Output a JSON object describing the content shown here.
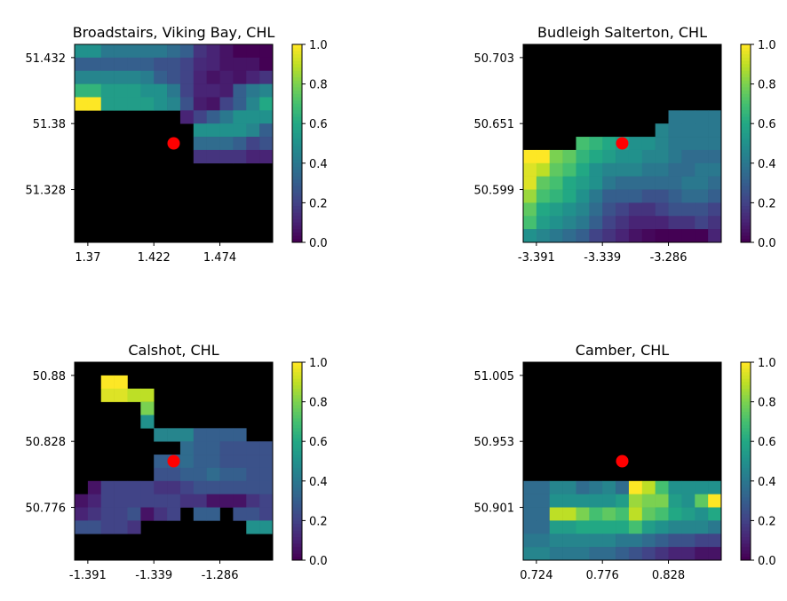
{
  "colors": {
    "land_mask": "#000000",
    "site_marker": "#ff0000",
    "colormap": "viridis"
  },
  "chart_data": [
    {
      "type": "heatmap",
      "title": "Broadstairs, Viking Bay, CHL",
      "xticks": [
        "1.37",
        "1.422",
        "1.474"
      ],
      "yticks": [
        "51.432",
        "51.38",
        "51.328"
      ],
      "colorbar_ticks": [
        "0.0",
        "0.2",
        "0.4",
        "0.6",
        "0.8",
        "1.0"
      ],
      "clim": [
        0,
        1
      ],
      "grid": [
        [
          0.5,
          0.5,
          0.4,
          0.4,
          0.4,
          0.4,
          0.4,
          0.35,
          0.3,
          0.15,
          0.1,
          0.05,
          0.0,
          0.0,
          0.0
        ],
        [
          0.3,
          0.3,
          0.3,
          0.3,
          0.3,
          0.3,
          0.25,
          0.25,
          0.2,
          0.12,
          0.1,
          0.05,
          0.05,
          0.05,
          0.0
        ],
        [
          0.45,
          0.45,
          0.45,
          0.45,
          0.45,
          0.42,
          0.3,
          0.25,
          0.2,
          0.1,
          0.05,
          0.08,
          0.05,
          0.1,
          0.15
        ],
        [
          0.65,
          0.65,
          0.55,
          0.55,
          0.55,
          0.5,
          0.5,
          0.4,
          0.2,
          0.1,
          0.1,
          0.08,
          0.3,
          0.4,
          0.45
        ],
        [
          1.0,
          1.0,
          0.55,
          0.55,
          0.55,
          0.55,
          0.5,
          0.45,
          0.25,
          0.08,
          0.05,
          0.2,
          0.3,
          0.45,
          0.6
        ],
        [
          null,
          null,
          null,
          null,
          null,
          null,
          null,
          null,
          0.1,
          0.2,
          0.3,
          0.4,
          0.5,
          0.5,
          0.5
        ],
        [
          null,
          null,
          null,
          null,
          null,
          null,
          null,
          null,
          null,
          0.5,
          0.5,
          0.5,
          0.5,
          0.45,
          0.3
        ],
        [
          null,
          null,
          null,
          null,
          null,
          null,
          null,
          null,
          null,
          0.35,
          0.35,
          0.35,
          0.3,
          0.2,
          0.25
        ],
        [
          null,
          null,
          null,
          null,
          null,
          null,
          null,
          null,
          null,
          0.15,
          0.15,
          0.15,
          0.15,
          0.1,
          0.1
        ],
        [
          null,
          null,
          null,
          null,
          null,
          null,
          null,
          null,
          null,
          null,
          null,
          null,
          null,
          null,
          null
        ],
        [
          null,
          null,
          null,
          null,
          null,
          null,
          null,
          null,
          null,
          null,
          null,
          null,
          null,
          null,
          null
        ],
        [
          null,
          null,
          null,
          null,
          null,
          null,
          null,
          null,
          null,
          null,
          null,
          null,
          null,
          null,
          null
        ],
        [
          null,
          null,
          null,
          null,
          null,
          null,
          null,
          null,
          null,
          null,
          null,
          null,
          null,
          null,
          null
        ],
        [
          null,
          null,
          null,
          null,
          null,
          null,
          null,
          null,
          null,
          null,
          null,
          null,
          null,
          null,
          null
        ],
        [
          null,
          null,
          null,
          null,
          null,
          null,
          null,
          null,
          null,
          null,
          null,
          null,
          null,
          null,
          null
        ]
      ],
      "site": {
        "col": 7.5,
        "row": 7.5
      }
    },
    {
      "type": "heatmap",
      "title": "Budleigh Salterton, CHL",
      "xticks": [
        "-3.391",
        "-3.339",
        "-3.286"
      ],
      "yticks": [
        "50.703",
        "50.651",
        "50.599"
      ],
      "colorbar_ticks": [
        "0.0",
        "0.2",
        "0.4",
        "0.6",
        "0.8",
        "1.0"
      ],
      "clim": [
        0,
        1
      ],
      "grid": [
        [
          null,
          null,
          null,
          null,
          null,
          null,
          null,
          null,
          null,
          null,
          null,
          null,
          null,
          null,
          null
        ],
        [
          null,
          null,
          null,
          null,
          null,
          null,
          null,
          null,
          null,
          null,
          null,
          null,
          null,
          null,
          null
        ],
        [
          null,
          null,
          null,
          null,
          null,
          null,
          null,
          null,
          null,
          null,
          null,
          null,
          null,
          null,
          null
        ],
        [
          null,
          null,
          null,
          null,
          null,
          null,
          null,
          null,
          null,
          null,
          null,
          null,
          null,
          null,
          null
        ],
        [
          null,
          null,
          null,
          null,
          null,
          null,
          null,
          null,
          null,
          null,
          null,
          null,
          null,
          null,
          null
        ],
        [
          null,
          null,
          null,
          null,
          null,
          null,
          null,
          null,
          null,
          null,
          null,
          0.4,
          0.4,
          0.4,
          0.4
        ],
        [
          null,
          null,
          null,
          null,
          null,
          null,
          null,
          null,
          null,
          null,
          0.45,
          0.4,
          0.4,
          0.4,
          0.4
        ],
        [
          null,
          null,
          null,
          null,
          0.7,
          0.65,
          0.6,
          0.55,
          0.5,
          0.5,
          0.45,
          0.4,
          0.4,
          0.4,
          0.4
        ],
        [
          1.0,
          1.0,
          0.8,
          0.75,
          0.65,
          0.6,
          0.55,
          0.5,
          0.5,
          0.45,
          0.45,
          0.4,
          0.35,
          0.35,
          0.35
        ],
        [
          0.95,
          0.9,
          0.75,
          0.7,
          0.6,
          0.5,
          0.45,
          0.45,
          0.45,
          0.4,
          0.4,
          0.35,
          0.35,
          0.4,
          0.4
        ],
        [
          0.95,
          0.75,
          0.7,
          0.6,
          0.55,
          0.5,
          0.4,
          0.35,
          0.35,
          0.35,
          0.35,
          0.35,
          0.4,
          0.4,
          0.35
        ],
        [
          0.85,
          0.7,
          0.65,
          0.6,
          0.5,
          0.4,
          0.3,
          0.3,
          0.3,
          0.25,
          0.25,
          0.3,
          0.35,
          0.35,
          0.3
        ],
        [
          0.75,
          0.6,
          0.55,
          0.5,
          0.45,
          0.35,
          0.25,
          0.2,
          0.15,
          0.15,
          0.2,
          0.25,
          0.25,
          0.25,
          0.2
        ],
        [
          0.7,
          0.55,
          0.5,
          0.45,
          0.4,
          0.3,
          0.2,
          0.15,
          0.1,
          0.1,
          0.1,
          0.15,
          0.15,
          0.2,
          0.15
        ],
        [
          0.5,
          0.45,
          0.4,
          0.35,
          0.3,
          0.2,
          0.15,
          0.1,
          0.05,
          0.02,
          0.0,
          0.0,
          0.0,
          0.0,
          0.1
        ]
      ],
      "site": {
        "col": 7.5,
        "row": 7.5
      }
    },
    {
      "type": "heatmap",
      "title": "Calshot, CHL",
      "xticks": [
        "-1.391",
        "-1.339",
        "-1.286"
      ],
      "yticks": [
        "50.88",
        "50.828",
        "50.776"
      ],
      "colorbar_ticks": [
        "0.0",
        "0.2",
        "0.4",
        "0.6",
        "0.8",
        "1.0"
      ],
      "clim": [
        0,
        1
      ],
      "grid": [
        [
          null,
          null,
          null,
          null,
          null,
          null,
          null,
          null,
          null,
          null,
          null,
          null,
          null,
          null,
          null
        ],
        [
          null,
          null,
          1.0,
          1.0,
          null,
          null,
          null,
          null,
          null,
          null,
          null,
          null,
          null,
          null,
          null
        ],
        [
          null,
          null,
          0.95,
          0.95,
          0.9,
          0.9,
          null,
          null,
          null,
          null,
          null,
          null,
          null,
          null,
          null
        ],
        [
          null,
          null,
          null,
          null,
          null,
          0.8,
          null,
          null,
          null,
          null,
          null,
          null,
          null,
          null,
          null
        ],
        [
          null,
          null,
          null,
          null,
          null,
          0.5,
          null,
          null,
          null,
          null,
          null,
          null,
          null,
          null,
          null
        ],
        [
          null,
          null,
          null,
          null,
          null,
          null,
          0.45,
          0.45,
          0.45,
          0.3,
          0.3,
          0.3,
          0.3,
          null,
          null
        ],
        [
          null,
          null,
          null,
          null,
          null,
          null,
          null,
          null,
          0.35,
          0.3,
          0.3,
          0.25,
          0.25,
          0.25,
          0.25
        ],
        [
          null,
          null,
          null,
          null,
          null,
          null,
          0.3,
          0.3,
          0.35,
          0.3,
          0.3,
          0.25,
          0.25,
          0.25,
          0.25
        ],
        [
          null,
          null,
          null,
          null,
          null,
          null,
          0.25,
          0.25,
          0.3,
          0.3,
          0.35,
          0.3,
          0.3,
          0.25,
          0.25
        ],
        [
          null,
          0.05,
          0.2,
          0.2,
          0.2,
          0.2,
          0.15,
          0.15,
          0.2,
          0.25,
          0.25,
          0.25,
          0.25,
          0.25,
          0.25
        ],
        [
          0.05,
          0.1,
          0.2,
          0.2,
          0.2,
          0.2,
          0.2,
          0.2,
          0.15,
          0.15,
          0.05,
          0.05,
          0.05,
          0.15,
          0.2
        ],
        [
          0.1,
          0.15,
          0.2,
          0.2,
          0.25,
          0.05,
          0.15,
          0.2,
          null,
          0.3,
          0.3,
          null,
          0.25,
          0.25,
          0.2
        ],
        [
          0.25,
          0.25,
          0.2,
          0.2,
          0.15,
          null,
          null,
          null,
          null,
          null,
          null,
          null,
          null,
          0.5,
          0.5
        ],
        [
          null,
          null,
          null,
          null,
          null,
          null,
          null,
          null,
          null,
          null,
          null,
          null,
          null,
          null,
          null
        ],
        [
          null,
          null,
          null,
          null,
          null,
          null,
          null,
          null,
          null,
          null,
          null,
          null,
          null,
          null,
          null
        ]
      ],
      "site": {
        "col": 7.5,
        "row": 7.5
      }
    },
    {
      "type": "heatmap",
      "title": "Camber, CHL",
      "xticks": [
        "0.724",
        "0.776",
        "0.828"
      ],
      "yticks": [
        "51.005",
        "50.953",
        "50.901"
      ],
      "colorbar_ticks": [
        "0.0",
        "0.2",
        "0.4",
        "0.6",
        "0.8",
        "1.0"
      ],
      "clim": [
        0,
        1
      ],
      "grid": [
        [
          null,
          null,
          null,
          null,
          null,
          null,
          null,
          null,
          null,
          null,
          null,
          null,
          null,
          null,
          null
        ],
        [
          null,
          null,
          null,
          null,
          null,
          null,
          null,
          null,
          null,
          null,
          null,
          null,
          null,
          null,
          null
        ],
        [
          null,
          null,
          null,
          null,
          null,
          null,
          null,
          null,
          null,
          null,
          null,
          null,
          null,
          null,
          null
        ],
        [
          null,
          null,
          null,
          null,
          null,
          null,
          null,
          null,
          null,
          null,
          null,
          null,
          null,
          null,
          null
        ],
        [
          null,
          null,
          null,
          null,
          null,
          null,
          null,
          null,
          null,
          null,
          null,
          null,
          null,
          null,
          null
        ],
        [
          null,
          null,
          null,
          null,
          null,
          null,
          null,
          null,
          null,
          null,
          null,
          null,
          null,
          null,
          null
        ],
        [
          null,
          null,
          null,
          null,
          null,
          null,
          null,
          null,
          null,
          null,
          null,
          null,
          null,
          null,
          null
        ],
        [
          null,
          null,
          null,
          null,
          null,
          null,
          null,
          null,
          null,
          null,
          null,
          null,
          null,
          null,
          null
        ],
        [
          null,
          null,
          null,
          null,
          null,
          null,
          null,
          null,
          null,
          null,
          null,
          null,
          null,
          null,
          null
        ],
        [
          0.35,
          0.35,
          0.45,
          0.45,
          0.35,
          0.4,
          0.45,
          0.35,
          1.0,
          0.9,
          0.7,
          0.5,
          0.5,
          0.5,
          0.5
        ],
        [
          0.35,
          0.35,
          0.5,
          0.5,
          0.5,
          0.5,
          0.5,
          0.55,
          0.85,
          0.8,
          0.8,
          0.55,
          0.5,
          0.75,
          1.0
        ],
        [
          0.35,
          0.35,
          0.9,
          0.9,
          0.8,
          0.7,
          0.75,
          0.7,
          0.9,
          0.75,
          0.7,
          0.6,
          0.55,
          0.5,
          0.6
        ],
        [
          0.35,
          0.35,
          0.55,
          0.55,
          0.6,
          0.6,
          0.6,
          0.6,
          0.7,
          0.55,
          0.5,
          0.45,
          0.45,
          0.45,
          0.4
        ],
        [
          0.4,
          0.4,
          0.45,
          0.45,
          0.45,
          0.45,
          0.45,
          0.4,
          0.4,
          0.35,
          0.3,
          0.25,
          0.25,
          0.2,
          0.2
        ],
        [
          0.45,
          0.45,
          0.4,
          0.4,
          0.4,
          0.35,
          0.35,
          0.3,
          0.25,
          0.2,
          0.15,
          0.1,
          0.1,
          0.05,
          0.05
        ]
      ],
      "site": {
        "col": 7.5,
        "row": 7.5
      }
    }
  ]
}
